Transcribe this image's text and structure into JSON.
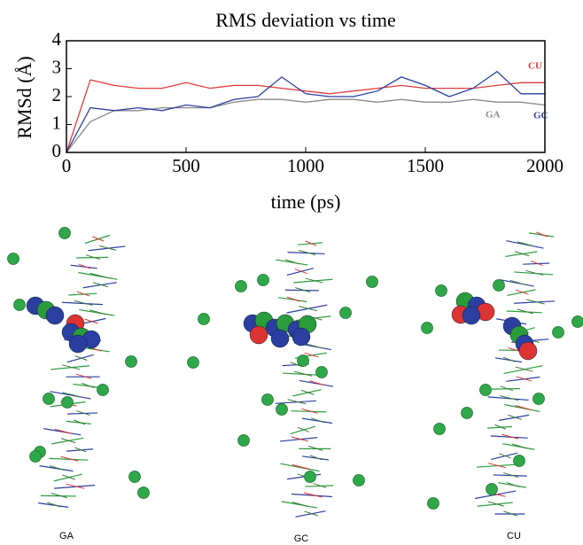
{
  "chart_data": {
    "type": "line",
    "title": "RMS deviation vs time",
    "x_label": "time (ps)",
    "y_label": "RMSd (Å)",
    "x": [
      0,
      100,
      200,
      300,
      400,
      500,
      600,
      700,
      800,
      900,
      1000,
      1100,
      1200,
      1300,
      1400,
      1500,
      1600,
      1700,
      1800,
      1900,
      2000
    ],
    "series": [
      {
        "name": "CU",
        "color": "#e03a3a",
        "values": [
          0,
          2.6,
          2.4,
          2.3,
          2.3,
          2.5,
          2.3,
          2.4,
          2.4,
          2.3,
          2.2,
          2.1,
          2.2,
          2.3,
          2.4,
          2.3,
          2.3,
          2.3,
          2.4,
          2.5,
          2.5
        ]
      },
      {
        "name": "GA",
        "color": "#8a8a8a",
        "values": [
          0,
          1.1,
          1.5,
          1.5,
          1.6,
          1.6,
          1.6,
          1.8,
          1.9,
          1.9,
          1.8,
          1.9,
          1.9,
          1.8,
          1.9,
          1.8,
          1.8,
          1.9,
          1.8,
          1.8,
          1.7
        ]
      },
      {
        "name": "GC",
        "color": "#2b3fa0",
        "values": [
          0,
          1.6,
          1.5,
          1.6,
          1.5,
          1.7,
          1.6,
          1.9,
          2.0,
          2.7,
          2.1,
          2.0,
          2.0,
          2.2,
          2.7,
          2.4,
          2.0,
          2.3,
          2.9,
          2.1,
          2.1
        ]
      }
    ],
    "xlim": [
      0,
      2000
    ],
    "xticks": [
      0,
      500,
      1000,
      1500,
      2000
    ],
    "ylim": [
      0,
      4
    ],
    "yticks": [
      0,
      1,
      2,
      3,
      4
    ]
  },
  "panels": [
    "GA",
    "GC",
    "CU"
  ]
}
